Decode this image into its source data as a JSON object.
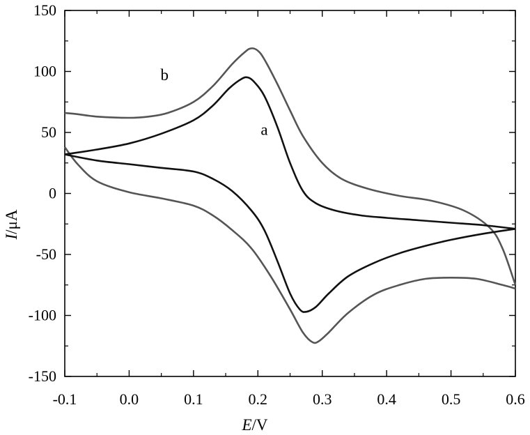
{
  "chart_data": {
    "type": "line",
    "x_axis": {
      "label_italic": "E",
      "label_unit": "/V",
      "range": [
        -0.1,
        0.6
      ],
      "ticks": [
        -0.1,
        0.0,
        0.1,
        0.2,
        0.3,
        0.4,
        0.5,
        0.6
      ],
      "tick_labels": [
        "-0.1",
        "0.0",
        "0.1",
        "0.2",
        "0.3",
        "0.4",
        "0.5",
        "0.6"
      ]
    },
    "y_axis": {
      "label_italic": "I",
      "label_unit": "/μA",
      "range": [
        -150,
        150
      ],
      "ticks": [
        -150,
        -100,
        -50,
        0,
        50,
        100,
        150
      ],
      "tick_labels": [
        "-150",
        "-100",
        "-50",
        "0",
        "50",
        "100",
        "150"
      ]
    },
    "grid": false,
    "legend": "none",
    "series": [
      {
        "name": "a",
        "color": "#111111",
        "label_at": [
          0.21,
          48
        ],
        "upper": [
          [
            -0.1,
            32
          ],
          [
            -0.05,
            36
          ],
          [
            0.0,
            41
          ],
          [
            0.05,
            49
          ],
          [
            0.1,
            60
          ],
          [
            0.13,
            72
          ],
          [
            0.155,
            86
          ],
          [
            0.175,
            94
          ],
          [
            0.185,
            95
          ],
          [
            0.195,
            91
          ],
          [
            0.21,
            80
          ],
          [
            0.23,
            55
          ],
          [
            0.25,
            25
          ],
          [
            0.27,
            2
          ],
          [
            0.29,
            -8
          ],
          [
            0.32,
            -14
          ],
          [
            0.36,
            -18
          ],
          [
            0.4,
            -20
          ],
          [
            0.45,
            -22
          ],
          [
            0.5,
            -24
          ],
          [
            0.55,
            -26
          ],
          [
            0.6,
            -29
          ]
        ],
        "lower": [
          [
            -0.1,
            32
          ],
          [
            -0.05,
            27
          ],
          [
            0.0,
            24
          ],
          [
            0.05,
            21
          ],
          [
            0.1,
            18
          ],
          [
            0.13,
            12
          ],
          [
            0.16,
            2
          ],
          [
            0.19,
            -14
          ],
          [
            0.21,
            -30
          ],
          [
            0.23,
            -55
          ],
          [
            0.25,
            -82
          ],
          [
            0.265,
            -95
          ],
          [
            0.275,
            -97
          ],
          [
            0.29,
            -93
          ],
          [
            0.31,
            -82
          ],
          [
            0.34,
            -68
          ],
          [
            0.38,
            -57
          ],
          [
            0.42,
            -49
          ],
          [
            0.46,
            -43
          ],
          [
            0.5,
            -38
          ],
          [
            0.55,
            -33
          ],
          [
            0.6,
            -29
          ]
        ]
      },
      {
        "name": "b",
        "color": "#555555",
        "label_at": [
          0.055,
          93
        ],
        "upper": [
          [
            -0.1,
            66
          ],
          [
            -0.08,
            65
          ],
          [
            -0.05,
            63
          ],
          [
            0.0,
            62
          ],
          [
            0.03,
            63
          ],
          [
            0.06,
            66
          ],
          [
            0.1,
            75
          ],
          [
            0.13,
            88
          ],
          [
            0.16,
            106
          ],
          [
            0.18,
            116
          ],
          [
            0.19,
            119
          ],
          [
            0.2,
            117
          ],
          [
            0.21,
            110
          ],
          [
            0.23,
            90
          ],
          [
            0.25,
            68
          ],
          [
            0.27,
            47
          ],
          [
            0.3,
            25
          ],
          [
            0.33,
            12
          ],
          [
            0.37,
            4
          ],
          [
            0.42,
            -2
          ],
          [
            0.47,
            -6
          ],
          [
            0.52,
            -14
          ],
          [
            0.56,
            -28
          ],
          [
            0.58,
            -45
          ],
          [
            0.6,
            -75
          ]
        ],
        "lower": [
          [
            -0.1,
            38
          ],
          [
            -0.08,
            24
          ],
          [
            -0.05,
            10
          ],
          [
            0.0,
            1
          ],
          [
            0.05,
            -4
          ],
          [
            0.1,
            -10
          ],
          [
            0.13,
            -18
          ],
          [
            0.16,
            -30
          ],
          [
            0.19,
            -45
          ],
          [
            0.22,
            -68
          ],
          [
            0.25,
            -95
          ],
          [
            0.27,
            -114
          ],
          [
            0.285,
            -122
          ],
          [
            0.295,
            -121
          ],
          [
            0.31,
            -114
          ],
          [
            0.34,
            -98
          ],
          [
            0.38,
            -83
          ],
          [
            0.42,
            -75
          ],
          [
            0.46,
            -70
          ],
          [
            0.5,
            -69
          ],
          [
            0.54,
            -70
          ],
          [
            0.58,
            -75
          ],
          [
            0.6,
            -78
          ]
        ]
      }
    ]
  }
}
